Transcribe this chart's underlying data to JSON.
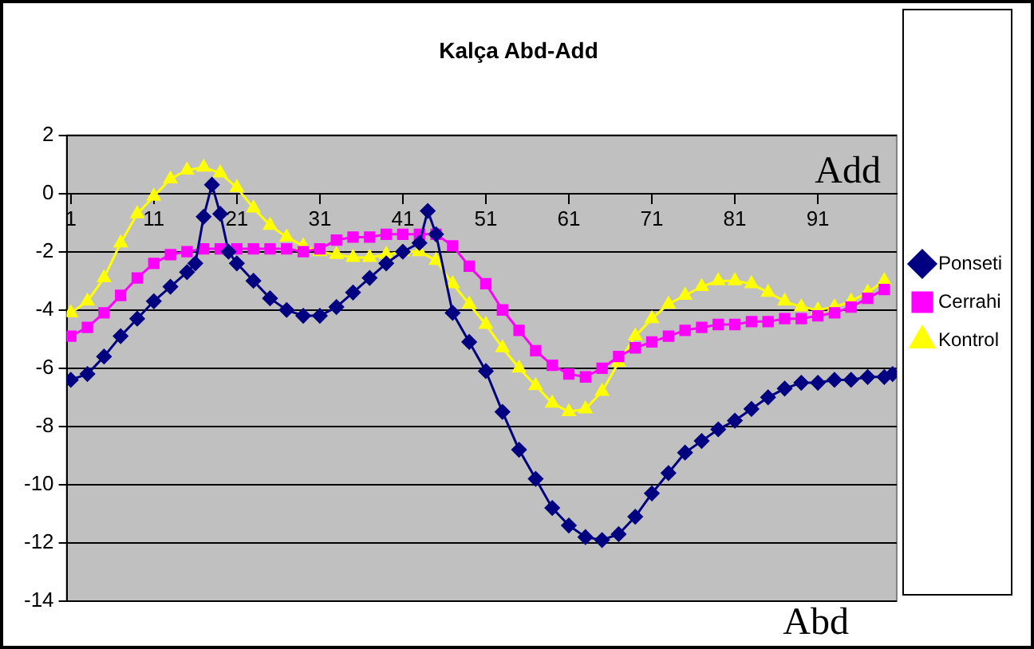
{
  "chart_data": {
    "type": "line",
    "title": "Kalça Abd-Add",
    "annotations": [
      "Add",
      "Abd"
    ],
    "xlim": [
      0.5,
      100.5
    ],
    "xticks": [
      1,
      11,
      21,
      31,
      41,
      51,
      61,
      71,
      81,
      91
    ],
    "ylim": [
      -14,
      2
    ],
    "yticks": [
      -14,
      -12,
      -10,
      -8,
      -6,
      -4,
      -2,
      0,
      2
    ],
    "grid": "y",
    "legend": "right",
    "line_style": "solid",
    "series": [
      {
        "name": "Ponseti",
        "color": "#000080",
        "marker": "diamond",
        "x": [
          1,
          3,
          5,
          7,
          9,
          11,
          13,
          15,
          16,
          17,
          18,
          19,
          20,
          21,
          23,
          25,
          27,
          29,
          31,
          33,
          35,
          37,
          39,
          41,
          43,
          44,
          45,
          47,
          49,
          51,
          53,
          55,
          57,
          59,
          61,
          63,
          65,
          67,
          69,
          71,
          73,
          75,
          77,
          79,
          81,
          83,
          85,
          87,
          89,
          91,
          93,
          95,
          97,
          99,
          100
        ],
        "values": [
          -6.4,
          -6.2,
          -5.6,
          -4.9,
          -4.3,
          -3.7,
          -3.2,
          -2.7,
          -2.4,
          -0.8,
          0.3,
          -0.7,
          -2.0,
          -2.4,
          -3.0,
          -3.6,
          -4.0,
          -4.2,
          -4.2,
          -3.9,
          -3.4,
          -2.9,
          -2.4,
          -2.0,
          -1.7,
          -0.6,
          -1.4,
          -4.1,
          -5.1,
          -6.1,
          -7.5,
          -8.8,
          -9.8,
          -10.8,
          -11.4,
          -11.8,
          -11.9,
          -11.7,
          -11.1,
          -10.3,
          -9.6,
          -8.9,
          -8.5,
          -8.1,
          -7.8,
          -7.4,
          -7.0,
          -6.7,
          -6.5,
          -6.5,
          -6.4,
          -6.4,
          -6.3,
          -6.3,
          -6.2
        ]
      },
      {
        "name": "Cerrahi",
        "color": "#ff00ff",
        "marker": "square",
        "x": [
          1,
          3,
          5,
          7,
          9,
          11,
          13,
          15,
          17,
          19,
          21,
          23,
          25,
          27,
          29,
          31,
          33,
          35,
          37,
          39,
          41,
          43,
          45,
          47,
          49,
          51,
          53,
          55,
          57,
          59,
          61,
          63,
          65,
          67,
          69,
          71,
          73,
          75,
          77,
          79,
          81,
          83,
          85,
          87,
          89,
          91,
          93,
          95,
          97,
          99
        ],
        "values": [
          -4.9,
          -4.6,
          -4.1,
          -3.5,
          -2.9,
          -2.4,
          -2.1,
          -2.0,
          -1.9,
          -1.9,
          -1.9,
          -1.9,
          -1.9,
          -1.9,
          -2.0,
          -1.9,
          -1.6,
          -1.5,
          -1.5,
          -1.4,
          -1.4,
          -1.4,
          -1.4,
          -1.8,
          -2.5,
          -3.1,
          -4.0,
          -4.7,
          -5.4,
          -5.9,
          -6.2,
          -6.3,
          -6.0,
          -5.6,
          -5.3,
          -5.1,
          -4.9,
          -4.7,
          -4.6,
          -4.5,
          -4.5,
          -4.4,
          -4.4,
          -4.3,
          -4.3,
          -4.2,
          -4.1,
          -3.9,
          -3.6,
          -3.3
        ]
      },
      {
        "name": "Kontrol",
        "color": "#ffff00",
        "marker": "triangle",
        "x": [
          1,
          3,
          5,
          7,
          9,
          11,
          13,
          15,
          17,
          19,
          21,
          23,
          25,
          27,
          29,
          31,
          33,
          35,
          37,
          39,
          41,
          43,
          45,
          47,
          49,
          51,
          53,
          55,
          57,
          59,
          61,
          63,
          65,
          67,
          69,
          71,
          73,
          75,
          77,
          79,
          81,
          83,
          85,
          87,
          89,
          91,
          93,
          95,
          97,
          99
        ],
        "values": [
          -4.1,
          -3.7,
          -2.9,
          -1.7,
          -0.7,
          -0.1,
          0.5,
          0.8,
          0.9,
          0.7,
          0.2,
          -0.5,
          -1.1,
          -1.5,
          -1.8,
          -2.0,
          -2.1,
          -2.2,
          -2.2,
          -2.1,
          -2.0,
          -2.0,
          -2.3,
          -3.1,
          -3.8,
          -4.5,
          -5.3,
          -6.0,
          -6.6,
          -7.2,
          -7.5,
          -7.4,
          -6.8,
          -5.8,
          -4.9,
          -4.3,
          -3.8,
          -3.5,
          -3.2,
          -3.0,
          -3.0,
          -3.1,
          -3.4,
          -3.7,
          -3.9,
          -4.0,
          -3.9,
          -3.7,
          -3.4,
          -3.0
        ]
      }
    ]
  }
}
